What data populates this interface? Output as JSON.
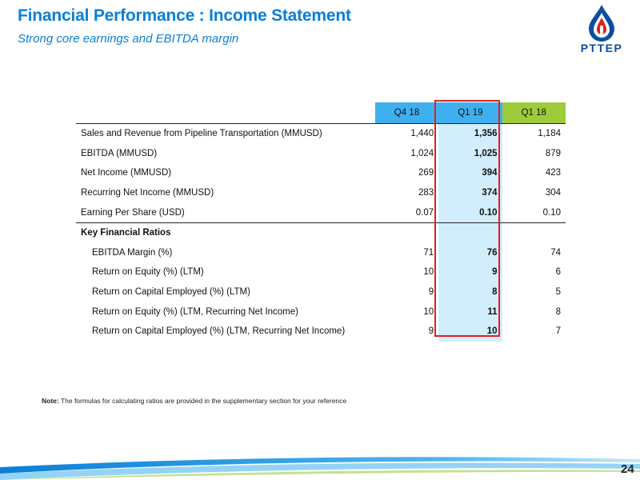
{
  "header": {
    "title": "Financial Performance : Income Statement",
    "subtitle": "Strong core earnings and EBITDA margin",
    "logo_text": "PTTEP"
  },
  "table": {
    "columns": [
      "Q4 18",
      "Q1 19",
      "Q1 18"
    ],
    "rows": [
      {
        "label": "Sales and Revenue from Pipeline Transportation (MMUSD)",
        "values": [
          "1,440",
          "1,356",
          "1,184"
        ]
      },
      {
        "label": "EBITDA (MMUSD)",
        "values": [
          "1,024",
          "1,025",
          "879"
        ]
      },
      {
        "label": "Net Income (MMUSD)",
        "values": [
          "269",
          "394",
          "423"
        ]
      },
      {
        "label": "Recurring Net Income (MMUSD)",
        "values": [
          "283",
          "374",
          "304"
        ]
      },
      {
        "label": "Earning Per Share (USD)",
        "values": [
          "0.07",
          "0.10",
          "0.10"
        ]
      }
    ],
    "section_title": "Key Financial Ratios",
    "ratios": [
      {
        "label": "EBITDA Margin (%)",
        "values": [
          "71",
          "76",
          "74"
        ]
      },
      {
        "label": "Return on Equity (%) (LTM)",
        "values": [
          "10",
          "9",
          "6"
        ]
      },
      {
        "label": "Return on Capital Employed (%) (LTM)",
        "values": [
          "9",
          "8",
          "5"
        ]
      },
      {
        "label": "Return on Equity (%) (LTM, Recurring Net Income)",
        "values": [
          "10",
          "11",
          "8"
        ]
      },
      {
        "label": "Return on Capital Employed (%) (LTM, Recurring Net Income)",
        "values": [
          "9",
          "10",
          "7"
        ]
      }
    ]
  },
  "note": {
    "prefix": "Note:",
    "text": " The formulas for calculating ratios are provided in the supplementary section for your reference"
  },
  "page_number": "24",
  "colors": {
    "title": "#0a7fd6",
    "header_blue": "#3fb0ef",
    "header_green": "#9ccc3a",
    "highlight": "#d2eefc",
    "red_box": "#e02020"
  }
}
